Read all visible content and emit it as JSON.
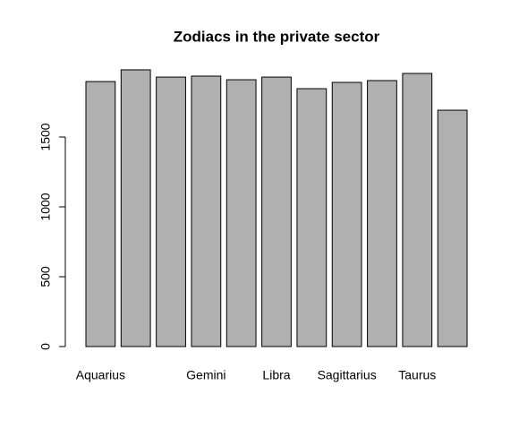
{
  "chart_data": {
    "type": "bar",
    "title": "Zodiacs in the private sector",
    "categories": [
      "Aquarius",
      null,
      null,
      "Gemini",
      null,
      "Libra",
      null,
      "Sagittarius",
      null,
      "Taurus",
      null
    ],
    "values": [
      1897,
      1981,
      1929,
      1936,
      1910,
      1929,
      1846,
      1891,
      1904,
      1955,
      1692
    ],
    "color": "#b0b0b0",
    "ylim": [
      0,
      2000
    ],
    "yticks": [
      0,
      500,
      1000,
      1500
    ],
    "grid": false
  }
}
